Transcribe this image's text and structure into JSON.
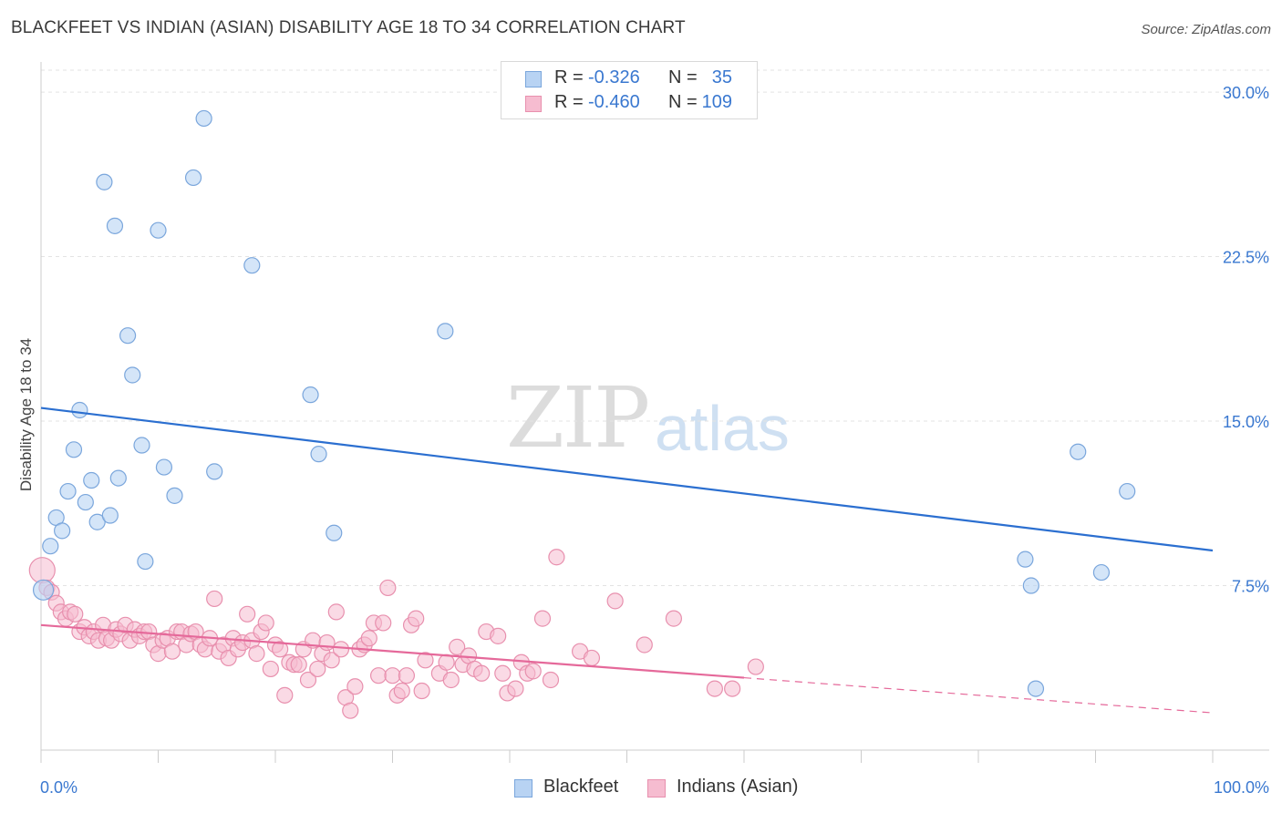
{
  "title": "BLACKFEET VS INDIAN (ASIAN) DISABILITY AGE 18 TO 34 CORRELATION CHART",
  "source": "Source: ZipAtlas.com",
  "watermark": {
    "zip": "ZIP",
    "atlas": "atlas"
  },
  "legend": {
    "rows": [
      {
        "r_label": "R =",
        "r_value": "-0.326",
        "n_label": "N =",
        "n_value": "35"
      },
      {
        "r_label": "R =",
        "r_value": "-0.460",
        "n_label": "N =",
        "n_value": "109"
      }
    ]
  },
  "bottom_legend": {
    "blackfeet": "Blackfeet",
    "indians": "Indians (Asian)"
  },
  "colors": {
    "blackfeet_fill": "#b8d3f3",
    "blackfeet_stroke": "#7aa6dc",
    "blackfeet_line": "#2b6fd0",
    "indian_fill": "#f6bcd0",
    "indian_stroke": "#e890ae",
    "indian_line": "#e5699a",
    "tick_label": "#3a78d0",
    "grid": "#e3e3e3"
  },
  "chart_data": {
    "type": "scatter",
    "title": "BLACKFEET VS INDIAN (ASIAN) DISABILITY AGE 18 TO 34 CORRELATION CHART",
    "xlabel": "",
    "ylabel": "Disability Age 18 to 34",
    "xlim": [
      0,
      100
    ],
    "ylim": [
      0,
      31
    ],
    "x_tick_labels": [
      "0.0%",
      "100.0%"
    ],
    "y_ticks": [
      7.5,
      15.0,
      22.5,
      30.0
    ],
    "y_tick_labels": [
      "7.5%",
      "15.0%",
      "22.5%",
      "30.0%"
    ],
    "grid": true,
    "legend_position": "top-center",
    "series": [
      {
        "name": "Blackfeet",
        "points": [
          [
            0.2,
            7.3
          ],
          [
            0.8,
            9.3
          ],
          [
            1.3,
            10.6
          ],
          [
            1.8,
            10.0
          ],
          [
            2.3,
            11.8
          ],
          [
            2.8,
            13.7
          ],
          [
            3.3,
            15.5
          ],
          [
            3.8,
            11.3
          ],
          [
            4.3,
            12.3
          ],
          [
            4.8,
            10.4
          ],
          [
            5.4,
            25.9
          ],
          [
            5.9,
            10.7
          ],
          [
            6.3,
            23.9
          ],
          [
            6.6,
            12.4
          ],
          [
            7.4,
            18.9
          ],
          [
            7.8,
            17.1
          ],
          [
            8.6,
            13.9
          ],
          [
            8.9,
            8.6
          ],
          [
            10.0,
            23.7
          ],
          [
            10.5,
            12.9
          ],
          [
            11.4,
            11.6
          ],
          [
            13.0,
            26.1
          ],
          [
            13.9,
            28.8
          ],
          [
            14.8,
            12.7
          ],
          [
            18.0,
            22.1
          ],
          [
            23.0,
            16.2
          ],
          [
            23.7,
            13.5
          ],
          [
            25.0,
            9.9
          ],
          [
            34.5,
            19.1
          ],
          [
            84.0,
            8.7
          ],
          [
            84.5,
            7.5
          ],
          [
            84.9,
            2.8
          ],
          [
            88.5,
            13.6
          ],
          [
            90.5,
            8.1
          ],
          [
            92.7,
            11.8
          ]
        ],
        "trend": {
          "x": [
            0,
            100
          ],
          "y": [
            15.6,
            9.1
          ]
        }
      },
      {
        "name": "Indians (Asian)",
        "points": [
          [
            0.1,
            8.2
          ],
          [
            0.5,
            7.4
          ],
          [
            0.9,
            7.2
          ],
          [
            1.3,
            6.7
          ],
          [
            1.7,
            6.3
          ],
          [
            2.1,
            6.0
          ],
          [
            2.5,
            6.3
          ],
          [
            2.9,
            6.2
          ],
          [
            3.3,
            5.4
          ],
          [
            3.7,
            5.6
          ],
          [
            4.1,
            5.2
          ],
          [
            4.5,
            5.4
          ],
          [
            4.9,
            5.0
          ],
          [
            5.3,
            5.7
          ],
          [
            5.6,
            5.1
          ],
          [
            6.0,
            5.0
          ],
          [
            6.4,
            5.5
          ],
          [
            6.8,
            5.3
          ],
          [
            7.2,
            5.7
          ],
          [
            7.6,
            5.0
          ],
          [
            8.0,
            5.5
          ],
          [
            8.4,
            5.2
          ],
          [
            8.8,
            5.4
          ],
          [
            9.2,
            5.4
          ],
          [
            9.6,
            4.8
          ],
          [
            10.0,
            4.4
          ],
          [
            10.4,
            5.0
          ],
          [
            10.8,
            5.1
          ],
          [
            11.2,
            4.5
          ],
          [
            11.6,
            5.4
          ],
          [
            12.0,
            5.4
          ],
          [
            12.4,
            4.8
          ],
          [
            12.8,
            5.3
          ],
          [
            13.2,
            5.4
          ],
          [
            13.6,
            4.8
          ],
          [
            14.0,
            4.6
          ],
          [
            14.4,
            5.1
          ],
          [
            14.8,
            6.9
          ],
          [
            15.2,
            4.5
          ],
          [
            15.6,
            4.8
          ],
          [
            16.0,
            4.2
          ],
          [
            16.4,
            5.1
          ],
          [
            16.8,
            4.6
          ],
          [
            17.2,
            4.9
          ],
          [
            17.6,
            6.2
          ],
          [
            18.0,
            5.0
          ],
          [
            18.4,
            4.4
          ],
          [
            18.8,
            5.4
          ],
          [
            19.2,
            5.8
          ],
          [
            19.6,
            3.7
          ],
          [
            20.0,
            4.8
          ],
          [
            20.4,
            4.6
          ],
          [
            20.8,
            2.5
          ],
          [
            21.2,
            4.0
          ],
          [
            21.6,
            3.9
          ],
          [
            22.0,
            3.9
          ],
          [
            22.4,
            4.6
          ],
          [
            22.8,
            3.2
          ],
          [
            23.2,
            5.0
          ],
          [
            23.6,
            3.7
          ],
          [
            24.0,
            4.4
          ],
          [
            24.4,
            4.9
          ],
          [
            24.8,
            4.1
          ],
          [
            25.2,
            6.3
          ],
          [
            25.6,
            4.6
          ],
          [
            26.0,
            2.4
          ],
          [
            26.4,
            1.8
          ],
          [
            26.8,
            2.9
          ],
          [
            27.2,
            4.6
          ],
          [
            27.6,
            4.8
          ],
          [
            28.0,
            5.1
          ],
          [
            28.4,
            5.8
          ],
          [
            28.8,
            3.4
          ],
          [
            29.2,
            5.8
          ],
          [
            29.6,
            7.4
          ],
          [
            30.0,
            3.4
          ],
          [
            30.4,
            2.5
          ],
          [
            30.8,
            2.7
          ],
          [
            31.2,
            3.4
          ],
          [
            31.6,
            5.7
          ],
          [
            32.0,
            6.0
          ],
          [
            32.5,
            2.7
          ],
          [
            32.8,
            4.1
          ],
          [
            34.0,
            3.5
          ],
          [
            34.6,
            4.0
          ],
          [
            35.0,
            3.2
          ],
          [
            35.5,
            4.7
          ],
          [
            36.0,
            3.9
          ],
          [
            36.5,
            4.3
          ],
          [
            37.0,
            3.7
          ],
          [
            37.6,
            3.5
          ],
          [
            38.0,
            5.4
          ],
          [
            39.0,
            5.2
          ],
          [
            39.4,
            3.5
          ],
          [
            39.8,
            2.6
          ],
          [
            40.5,
            2.8
          ],
          [
            41.0,
            4.0
          ],
          [
            41.5,
            3.5
          ],
          [
            42.0,
            3.6
          ],
          [
            42.8,
            6.0
          ],
          [
            43.5,
            3.2
          ],
          [
            44.0,
            8.8
          ],
          [
            46.0,
            4.5
          ],
          [
            47.0,
            4.2
          ],
          [
            49.0,
            6.8
          ],
          [
            51.5,
            4.8
          ],
          [
            54.0,
            6.0
          ],
          [
            57.5,
            2.8
          ],
          [
            59.0,
            2.8
          ],
          [
            61.0,
            3.8
          ]
        ],
        "trend": {
          "x": [
            0,
            60
          ],
          "y": [
            5.7,
            3.3
          ]
        },
        "trend_dashed": {
          "x": [
            60,
            100
          ],
          "y": [
            3.3,
            1.7
          ]
        }
      }
    ]
  }
}
